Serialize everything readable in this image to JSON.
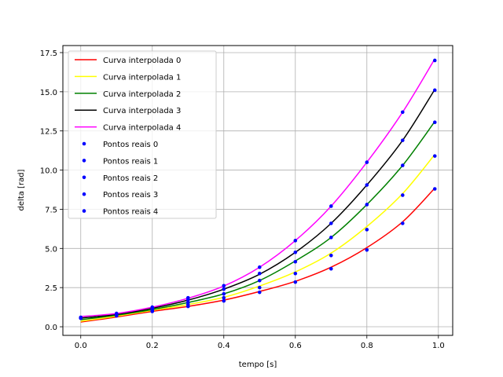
{
  "chart_data": {
    "type": "line",
    "title": "",
    "xlabel": "tempo [s]",
    "ylabel": "delta [rad]",
    "xlim": [
      -0.05,
      1.04
    ],
    "ylim": [
      -0.55,
      17.95
    ],
    "xticks": [
      0.0,
      0.2,
      0.4,
      0.6,
      0.8,
      1.0
    ],
    "xtick_labels": [
      "0.0",
      "0.2",
      "0.4",
      "0.6",
      "0.8",
      "1.0"
    ],
    "yticks": [
      0.0,
      2.5,
      5.0,
      7.5,
      10.0,
      12.5,
      15.0,
      17.5
    ],
    "ytick_labels": [
      "0.0",
      "2.5",
      "5.0",
      "7.5",
      "10.0",
      "12.5",
      "15.0",
      "17.5"
    ],
    "grid": true,
    "legend_position": "top-left",
    "x": [
      0.0,
      0.1,
      0.2,
      0.3,
      0.4,
      0.5,
      0.6,
      0.7,
      0.8,
      0.9,
      0.99
    ],
    "curves": [
      {
        "name": "Curva interpolada 0",
        "color": "#ff0000",
        "values": [
          0.3,
          0.62,
          0.98,
          1.3,
          1.7,
          2.25,
          2.9,
          3.8,
          5.05,
          6.7,
          8.85
        ]
      },
      {
        "name": "Curva interpolada 1",
        "color": "#ffff00",
        "values": [
          0.35,
          0.68,
          1.05,
          1.42,
          1.88,
          2.6,
          3.5,
          4.7,
          6.4,
          8.5,
          11.0
        ]
      },
      {
        "name": "Curva interpolada 2",
        "color": "#008000",
        "values": [
          0.45,
          0.74,
          1.1,
          1.55,
          2.1,
          2.95,
          4.2,
          5.7,
          7.8,
          10.3,
          13.1
        ]
      },
      {
        "name": "Curva interpolada 3",
        "color": "#000000",
        "values": [
          0.55,
          0.8,
          1.18,
          1.7,
          2.4,
          3.35,
          4.75,
          6.6,
          9.05,
          11.9,
          15.15
        ]
      },
      {
        "name": "Curva interpolada 4",
        "color": "#ff00ff",
        "values": [
          0.65,
          0.85,
          1.25,
          1.82,
          2.6,
          3.8,
          5.5,
          7.7,
          10.5,
          13.7,
          17.1
        ]
      }
    ],
    "points": [
      {
        "name": "Pontos reais 0",
        "color": "#0000ff",
        "values": [
          0.55,
          0.7,
          0.98,
          1.3,
          1.65,
          2.2,
          2.85,
          3.7,
          4.9,
          6.6,
          8.8
        ]
      },
      {
        "name": "Pontos reais 1",
        "color": "#0000ff",
        "values": [
          0.55,
          0.75,
          1.05,
          1.42,
          1.85,
          2.5,
          3.4,
          4.55,
          6.2,
          8.4,
          10.9
        ]
      },
      {
        "name": "Pontos reais 2",
        "color": "#0000ff",
        "values": [
          0.55,
          0.78,
          1.12,
          1.55,
          2.1,
          2.95,
          4.15,
          5.7,
          7.8,
          10.3,
          13.05
        ]
      },
      {
        "name": "Pontos reais 3",
        "color": "#0000ff",
        "values": [
          0.55,
          0.8,
          1.2,
          1.72,
          2.4,
          3.4,
          4.75,
          6.6,
          9.05,
          11.9,
          15.1
        ]
      },
      {
        "name": "Pontos reais 4",
        "color": "#0000ff",
        "values": [
          0.6,
          0.85,
          1.25,
          1.85,
          2.62,
          3.8,
          5.5,
          7.7,
          10.5,
          13.7,
          17.0
        ]
      }
    ]
  }
}
